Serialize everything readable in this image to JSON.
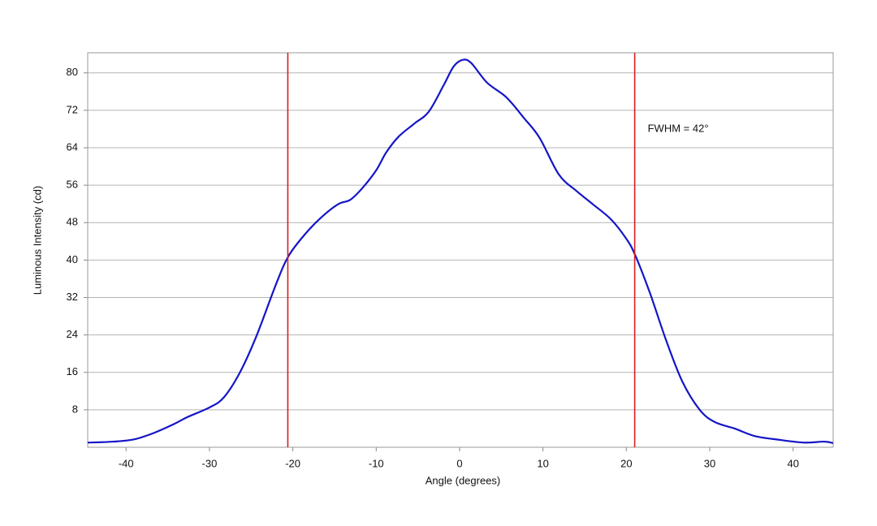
{
  "chart_data": {
    "type": "line",
    "x_label": "Angle (degrees)",
    "y_label": "Luminous Intensity (cd)",
    "annotation": "FWHM = 42°",
    "xlim": [
      -44.6,
      44.8
    ],
    "ylim": [
      0,
      84.3
    ],
    "xticks": [
      -40,
      -30,
      -20,
      -10,
      0,
      10,
      20,
      30,
      40
    ],
    "yticks": [
      8,
      16,
      24,
      32,
      40,
      48,
      56,
      64,
      72,
      80
    ],
    "grid": true,
    "vlines": {
      "color": "#d62020",
      "values": [
        -20.6,
        21.0
      ]
    },
    "series": [
      {
        "color": "#1515c8",
        "x": [
          -44.6,
          -41.5,
          -39,
          -36.6,
          -34.2,
          -32.7,
          -30,
          -28.3,
          -26.4,
          -24.4,
          -22,
          -20.5,
          -18.5,
          -16.6,
          -14.6,
          -13.1,
          -11.7,
          -10,
          -8.8,
          -7.3,
          -5.4,
          -3.7,
          -1.9,
          -0.7,
          0.4,
          1.4,
          3.3,
          5.6,
          7.7,
          9.6,
          11.9,
          14,
          16,
          18.1,
          19.9,
          21,
          22.8,
          24.8,
          26.7,
          28.8,
          30.6,
          33,
          35.4,
          38.3,
          41.3,
          43.7,
          44.8
        ],
        "values": [
          1.0,
          1.2,
          1.7,
          3.1,
          5.0,
          6.4,
          8.5,
          10.6,
          15.8,
          23.6,
          34.9,
          40.9,
          45.6,
          49.1,
          51.9,
          52.9,
          55.3,
          59.2,
          63,
          66.4,
          69.2,
          71.7,
          77.4,
          81.4,
          82.8,
          82.1,
          77.9,
          74.8,
          70.4,
          66.1,
          58.3,
          54.8,
          51.9,
          48.8,
          44.8,
          41.3,
          33.1,
          22.7,
          14.1,
          8.0,
          5.4,
          4.0,
          2.4,
          1.6,
          1.0,
          1.2,
          0.9
        ]
      }
    ]
  }
}
